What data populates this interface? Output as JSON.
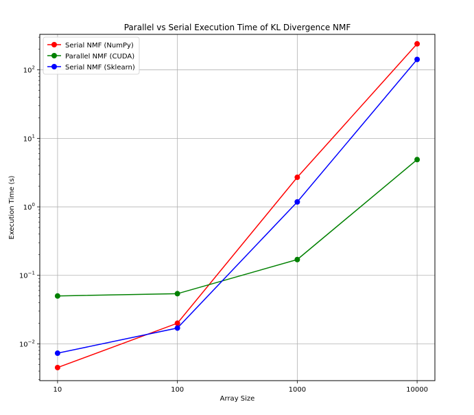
{
  "chart_data": {
    "type": "line",
    "title": "Parallel vs Serial Execution Time of KL Divergence NMF",
    "xlabel": "Array Size",
    "ylabel": "Execution Time (s)",
    "x_scale": "log",
    "y_scale": "log",
    "x": [
      10,
      100,
      1000,
      10000
    ],
    "x_tick_labels": [
      "10",
      "100",
      "1000",
      "10000"
    ],
    "y_ticks": [
      0.01,
      0.1,
      1,
      10,
      100
    ],
    "y_tick_labels": [
      {
        "base": "10",
        "exp": "−2"
      },
      {
        "base": "10",
        "exp": "−1"
      },
      {
        "base": "10",
        "exp": "0"
      },
      {
        "base": "10",
        "exp": "1"
      },
      {
        "base": "10",
        "exp": "2"
      }
    ],
    "ylim": [
      0.0029,
      330
    ],
    "grid": true,
    "legend_position": "top-left",
    "series": [
      {
        "name": "Serial NMF (NumPy)",
        "color": "#ff0000",
        "marker": "circle",
        "values": [
          0.0045,
          0.02,
          2.7,
          240
        ]
      },
      {
        "name": "Parallel NMF (CUDA)",
        "color": "#008000",
        "marker": "circle",
        "values": [
          0.05,
          0.054,
          0.17,
          4.9
        ]
      },
      {
        "name": "Serial NMF (Sklearn)",
        "color": "#0000ff",
        "marker": "circle",
        "values": [
          0.0073,
          0.017,
          1.18,
          142
        ]
      }
    ]
  }
}
